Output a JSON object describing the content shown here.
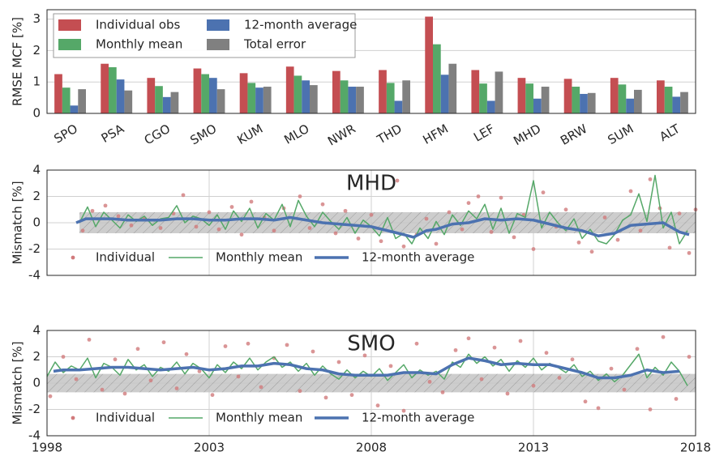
{
  "chart_data": [
    {
      "type": "bar",
      "ylabel": "RMSE MCF [%]",
      "categories": [
        "SPO",
        "PSA",
        "CGO",
        "SMO",
        "KUM",
        "MLO",
        "NWR",
        "THD",
        "HFM",
        "LEF",
        "MHD",
        "BRW",
        "SUM",
        "ALT"
      ],
      "series": [
        {
          "name": "Individual obs",
          "color": "#c44e52",
          "values": [
            1.25,
            1.58,
            1.13,
            1.43,
            1.28,
            1.49,
            1.35,
            1.38,
            3.08,
            1.38,
            1.13,
            1.1,
            1.13,
            1.05
          ]
        },
        {
          "name": "Monthly mean",
          "color": "#55a868",
          "values": [
            0.82,
            1.47,
            0.87,
            1.25,
            0.97,
            1.2,
            1.05,
            0.97,
            2.2,
            0.95,
            0.95,
            0.85,
            0.92,
            0.85
          ]
        },
        {
          "name": "12-month average",
          "color": "#4c72b0",
          "values": [
            0.25,
            1.08,
            0.52,
            1.13,
            0.82,
            1.05,
            0.85,
            0.4,
            1.23,
            0.4,
            0.47,
            0.62,
            0.47,
            0.53
          ]
        },
        {
          "name": "Total error",
          "color": "#808080",
          "values": [
            0.77,
            0.73,
            0.68,
            0.77,
            0.85,
            0.9,
            0.85,
            1.05,
            1.58,
            1.33,
            0.85,
            0.65,
            0.75,
            0.68
          ]
        }
      ],
      "ylim": [
        0,
        3.3
      ],
      "yticks": [
        0,
        1,
        2,
        3
      ],
      "grid": true,
      "legend": "upper-left"
    },
    {
      "type": "timeseries",
      "title": "MHD",
      "ylabel": "Mismatch [%]",
      "xlim": [
        1998,
        2018
      ],
      "xticks": [
        1998,
        2003,
        2008,
        2013,
        2018
      ],
      "xtick_labels": false,
      "ylim": [
        -4,
        4
      ],
      "yticks": [
        -4,
        -2,
        0,
        2,
        4
      ],
      "grid": true,
      "band": {
        "xlim": [
          1999,
          2018
        ],
        "ylim": [
          -0.8,
          0.8
        ]
      },
      "series": [
        {
          "name": "Individual",
          "kind": "scatter",
          "color": "#d17a7c",
          "x": [
            1999.1,
            1999.4,
            1999.8,
            2000.2,
            2000.6,
            2001,
            2001.5,
            2001.9,
            2002.2,
            2002.6,
            2003,
            2003.3,
            2003.7,
            2004,
            2004.3,
            2004.7,
            2005,
            2005.3,
            2005.8,
            2006.1,
            2006.5,
            2006.9,
            2007.2,
            2007.6,
            2008,
            2008.3,
            2008.8,
            2009,
            2009.4,
            2009.7,
            2010,
            2010.4,
            2010.8,
            2011,
            2011.3,
            2011.7,
            2012,
            2012.4,
            2012.7,
            2013,
            2013.3,
            2013.7,
            2014,
            2014.4,
            2014.8,
            2015.2,
            2015.6,
            2016,
            2016.3,
            2016.6,
            2016.9,
            2017.2,
            2017.5,
            2017.8,
            2018
          ],
          "values": [
            -0.6,
            0.9,
            1.3,
            0.5,
            -0.2,
            0.3,
            -0.4,
            0.7,
            2.1,
            -0.3,
            0.8,
            -0.5,
            1.2,
            -0.9,
            1.6,
            0.4,
            -0.6,
            1.1,
            2.0,
            -0.4,
            1.4,
            -0.8,
            0.9,
            -1.2,
            0.6,
            -1.4,
            3.2,
            -1.8,
            -0.9,
            0.3,
            -1.6,
            0.8,
            -0.5,
            1.5,
            2.0,
            -0.7,
            1.9,
            -1.1,
            0.6,
            -2.0,
            2.3,
            -0.3,
            1.0,
            -1.5,
            -2.2,
            0.4,
            -1.3,
            2.4,
            -0.6,
            3.3,
            1.1,
            -1.9,
            0.7,
            -2.3,
            1.0
          ]
        },
        {
          "name": "Monthly mean",
          "kind": "line",
          "width": 1.5,
          "color": "#55a868",
          "x": [
            1999,
            1999.25,
            1999.5,
            1999.75,
            2000,
            2000.25,
            2000.5,
            2000.75,
            2001,
            2001.25,
            2001.5,
            2001.75,
            2002,
            2002.25,
            2002.5,
            2002.75,
            2003,
            2003.25,
            2003.5,
            2003.75,
            2004,
            2004.25,
            2004.5,
            2004.75,
            2005,
            2005.25,
            2005.5,
            2005.75,
            2006,
            2006.25,
            2006.5,
            2006.75,
            2007,
            2007.25,
            2007.5,
            2007.75,
            2008,
            2008.25,
            2008.5,
            2008.75,
            2009,
            2009.25,
            2009.5,
            2009.75,
            2010,
            2010.25,
            2010.5,
            2010.75,
            2011,
            2011.25,
            2011.5,
            2011.75,
            2012,
            2012.25,
            2012.5,
            2012.75,
            2013,
            2013.25,
            2013.5,
            2013.75,
            2014,
            2014.25,
            2014.5,
            2014.75,
            2015,
            2015.25,
            2015.5,
            2015.75,
            2016,
            2016.25,
            2016.5,
            2016.75,
            2017,
            2017.25,
            2017.5,
            2017.75
          ],
          "values": [
            0.0,
            1.2,
            -0.3,
            0.8,
            0.2,
            -0.4,
            0.6,
            0.1,
            0.5,
            -0.2,
            0.3,
            0.4,
            1.3,
            0.0,
            0.5,
            0.3,
            -0.2,
            0.6,
            -0.5,
            0.9,
            0.1,
            1.1,
            -0.4,
            0.7,
            0.2,
            1.4,
            -0.3,
            1.7,
            0.5,
            -0.3,
            0.8,
            0.1,
            -0.5,
            0.4,
            -0.8,
            0.2,
            -0.3,
            -1.0,
            0.4,
            -1.2,
            -0.8,
            -1.6,
            -0.4,
            -1.2,
            0.1,
            -0.9,
            0.6,
            -0.2,
            0.9,
            0.3,
            1.4,
            -0.5,
            1.1,
            -0.8,
            0.7,
            0.4,
            3.2,
            -0.4,
            0.8,
            0.0,
            -0.6,
            0.3,
            -1.2,
            -0.5,
            -1.4,
            -1.6,
            -0.9,
            0.2,
            0.6,
            2.2,
            0.1,
            3.6,
            -0.4,
            0.8,
            -1.6,
            -0.6
          ]
        },
        {
          "name": "12-month average",
          "kind": "line",
          "width": 3.5,
          "color": "#4c72b0",
          "x": [
            1998.9,
            1999.2,
            1999.5,
            2000,
            2000.5,
            2001,
            2001.5,
            2002,
            2002.5,
            2003,
            2003.5,
            2004,
            2004.5,
            2005,
            2005.5,
            2006,
            2006.5,
            2007,
            2007.5,
            2008,
            2008.5,
            2009,
            2009.3,
            2009.7,
            2010,
            2010.5,
            2011,
            2011.5,
            2012,
            2012.5,
            2013,
            2013.5,
            2014,
            2014.5,
            2015,
            2015.5,
            2016,
            2016.5,
            2017,
            2017.5,
            2017.8
          ],
          "values": [
            0.0,
            0.3,
            0.3,
            0.3,
            0.2,
            0.2,
            0.2,
            0.3,
            0.3,
            0.2,
            0.2,
            0.3,
            0.3,
            0.2,
            0.4,
            0.2,
            0.0,
            -0.1,
            -0.2,
            -0.3,
            -0.6,
            -0.9,
            -1.1,
            -0.6,
            -0.5,
            -0.1,
            0.0,
            0.3,
            0.2,
            0.3,
            0.2,
            -0.1,
            -0.4,
            -0.6,
            -1.0,
            -0.8,
            -0.2,
            -0.1,
            0.0,
            -0.7,
            -0.9
          ]
        }
      ]
    },
    {
      "type": "timeseries",
      "title": "SMO",
      "ylabel": "Mismatch [%]",
      "xlim": [
        1998,
        2018
      ],
      "xticks": [
        1998,
        2003,
        2008,
        2013,
        2018
      ],
      "xtick_labels": true,
      "ylim": [
        -4,
        4
      ],
      "yticks": [
        -4,
        -2,
        0,
        2,
        4
      ],
      "grid": true,
      "band": {
        "xlim": [
          1998,
          2018
        ],
        "ylim": [
          -0.7,
          0.7
        ]
      },
      "series": [
        {
          "name": "Individual",
          "kind": "scatter",
          "color": "#d17a7c",
          "x": [
            1998.1,
            1998.5,
            1998.9,
            1999.3,
            1999.7,
            2000.1,
            2000.4,
            2000.8,
            2001.2,
            2001.6,
            2002,
            2002.3,
            2002.7,
            2003.1,
            2003.5,
            2003.9,
            2004.2,
            2004.6,
            2005,
            2005.4,
            2005.8,
            2006.2,
            2006.6,
            2007,
            2007.4,
            2007.8,
            2008.2,
            2008.6,
            2009,
            2009.4,
            2009.8,
            2010.2,
            2010.6,
            2011,
            2011.4,
            2011.8,
            2012.2,
            2012.6,
            2013,
            2013.4,
            2013.8,
            2014.2,
            2014.6,
            2015,
            2015.4,
            2015.8,
            2016.2,
            2016.6,
            2017,
            2017.4,
            2017.8
          ],
          "values": [
            -1.0,
            2.0,
            0.3,
            3.3,
            -0.5,
            1.8,
            -0.8,
            2.6,
            0.2,
            3.1,
            -0.4,
            2.2,
            0.9,
            -0.9,
            2.8,
            0.5,
            3.0,
            -0.3,
            1.9,
            2.9,
            -0.6,
            2.4,
            -1.1,
            1.6,
            -0.9,
            2.1,
            -1.7,
            1.3,
            -2.1,
            3.0,
            0.1,
            -0.7,
            2.5,
            3.4,
            0.3,
            2.7,
            -0.8,
            3.2,
            -0.2,
            2.3,
            0.4,
            1.8,
            -1.4,
            -1.9,
            1.1,
            -0.5,
            2.6,
            -2.0,
            3.5,
            -1.2,
            2.0
          ]
        },
        {
          "name": "Monthly mean",
          "kind": "line",
          "width": 1.5,
          "color": "#55a868",
          "x": [
            1998,
            1998.25,
            1998.5,
            1998.75,
            1999,
            1999.25,
            1999.5,
            1999.75,
            2000,
            2000.25,
            2000.5,
            2000.75,
            2001,
            2001.25,
            2001.5,
            2001.75,
            2002,
            2002.25,
            2002.5,
            2002.75,
            2003,
            2003.25,
            2003.5,
            2003.75,
            2004,
            2004.25,
            2004.5,
            2004.75,
            2005,
            2005.25,
            2005.5,
            2005.75,
            2006,
            2006.25,
            2006.5,
            2006.75,
            2007,
            2007.25,
            2007.5,
            2007.75,
            2008,
            2008.25,
            2008.5,
            2008.75,
            2009,
            2009.25,
            2009.5,
            2009.75,
            2010,
            2010.25,
            2010.5,
            2010.75,
            2011,
            2011.25,
            2011.5,
            2011.75,
            2012,
            2012.25,
            2012.5,
            2012.75,
            2013,
            2013.25,
            2013.5,
            2013.75,
            2014,
            2014.25,
            2014.5,
            2014.75,
            2015,
            2015.25,
            2015.5,
            2015.75,
            2016,
            2016.25,
            2016.5,
            2016.75,
            2017,
            2017.25,
            2017.5,
            2017.75
          ],
          "values": [
            0.5,
            1.6,
            0.8,
            1.3,
            1.0,
            1.9,
            0.4,
            1.5,
            1.2,
            0.6,
            1.8,
            1.0,
            1.4,
            0.5,
            1.2,
            0.9,
            1.6,
            0.7,
            1.5,
            1.1,
            0.4,
            1.4,
            0.8,
            1.6,
            1.1,
            1.9,
            1.0,
            1.6,
            2.0,
            1.2,
            1.6,
            0.9,
            1.5,
            0.6,
            1.3,
            0.7,
            0.3,
            1.0,
            0.4,
            0.9,
            0.5,
            1.1,
            0.2,
            0.8,
            1.4,
            0.4,
            1.0,
            0.6,
            0.9,
            0.3,
            1.6,
            1.2,
            2.2,
            1.5,
            2.0,
            1.3,
            1.8,
            0.9,
            1.7,
            1.2,
            1.9,
            1.0,
            1.5,
            1.2,
            0.8,
            1.4,
            0.5,
            0.9,
            0.2,
            0.7,
            0.1,
            0.6,
            1.4,
            2.2,
            0.4,
            1.2,
            0.6,
            1.6,
            0.9,
            -0.2
          ]
        },
        {
          "name": "12-month average",
          "kind": "line",
          "width": 3.5,
          "color": "#4c72b0",
          "x": [
            1998.2,
            1998.5,
            1999,
            1999.5,
            2000,
            2000.5,
            2001,
            2001.5,
            2002,
            2002.5,
            2003,
            2003.5,
            2004,
            2004.5,
            2005,
            2005.5,
            2006,
            2006.5,
            2007,
            2007.5,
            2008,
            2008.5,
            2009,
            2009.5,
            2010,
            2010.5,
            2011,
            2011.5,
            2012,
            2012.5,
            2013,
            2013.5,
            2014,
            2014.5,
            2015,
            2015.5,
            2016,
            2016.5,
            2017,
            2017.5
          ],
          "values": [
            0.9,
            1.0,
            1.0,
            1.1,
            1.2,
            1.2,
            1.1,
            1.0,
            1.1,
            1.2,
            1.0,
            1.1,
            1.3,
            1.3,
            1.5,
            1.4,
            1.1,
            1.0,
            0.7,
            0.6,
            0.6,
            0.6,
            0.8,
            0.8,
            0.7,
            1.4,
            1.9,
            1.7,
            1.4,
            1.5,
            1.4,
            1.4,
            1.1,
            0.8,
            0.4,
            0.4,
            0.6,
            1.0,
            0.8,
            0.9
          ]
        }
      ]
    }
  ]
}
